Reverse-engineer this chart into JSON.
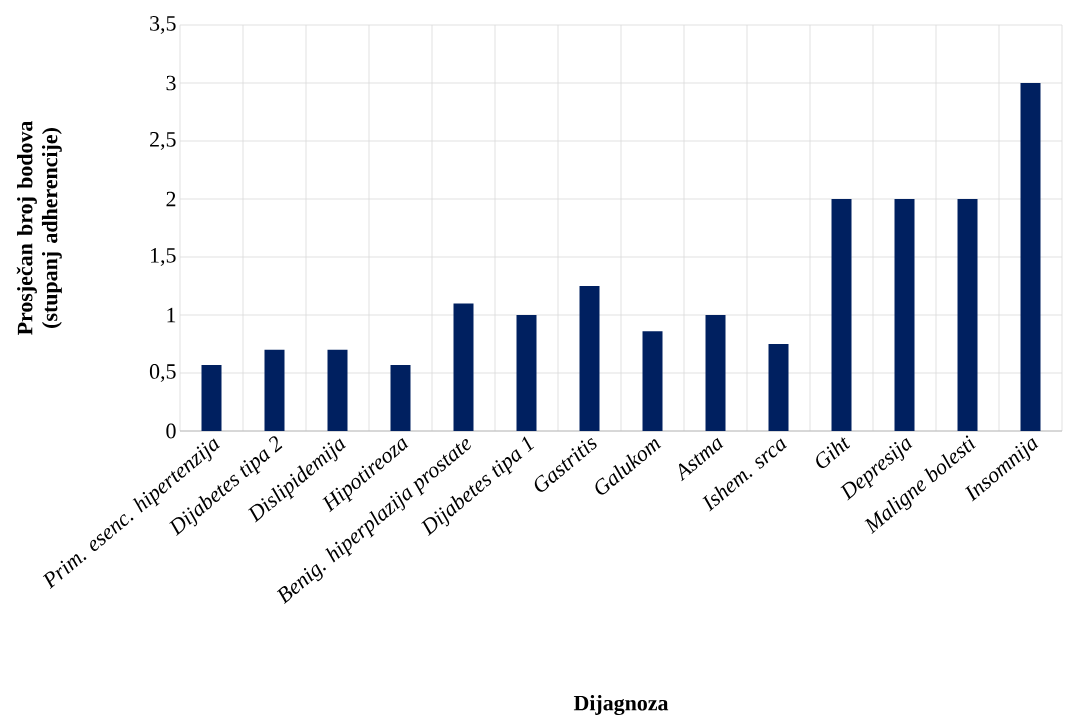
{
  "chart_data": {
    "type": "bar",
    "xlabel": "Dijagnoza",
    "ylabel": "Prosječan broj bodova (stupanj adherencije)",
    "categories": [
      "Prim. esenc. hipertenzija",
      "Dijabetes tipa 2",
      "Dislipidemija",
      "Hipotireoza",
      "Benig. hiperplazija prostate",
      "Dijabetes tipa 1",
      "Gastritis",
      "Galukom",
      "Astma",
      "Ishem. srca",
      "Giht",
      "Depresija",
      "Maligne bolesti",
      "Insomnija"
    ],
    "values": [
      0.57,
      0.7,
      0.7,
      0.57,
      1.1,
      1.0,
      1.25,
      0.86,
      1.0,
      0.75,
      2,
      2,
      2,
      3
    ],
    "color": "#002060",
    "ylim": [
      0,
      3.5
    ],
    "yticks": [
      0,
      {
        "value": 0.5,
        "label": "0,5"
      },
      1,
      {
        "value": 1.5,
        "label": "1,5"
      },
      2,
      {
        "value": 2.5,
        "label": "2,5"
      },
      3,
      {
        "value": 3.5,
        "label": "3,5"
      }
    ],
    "grid": true
  }
}
